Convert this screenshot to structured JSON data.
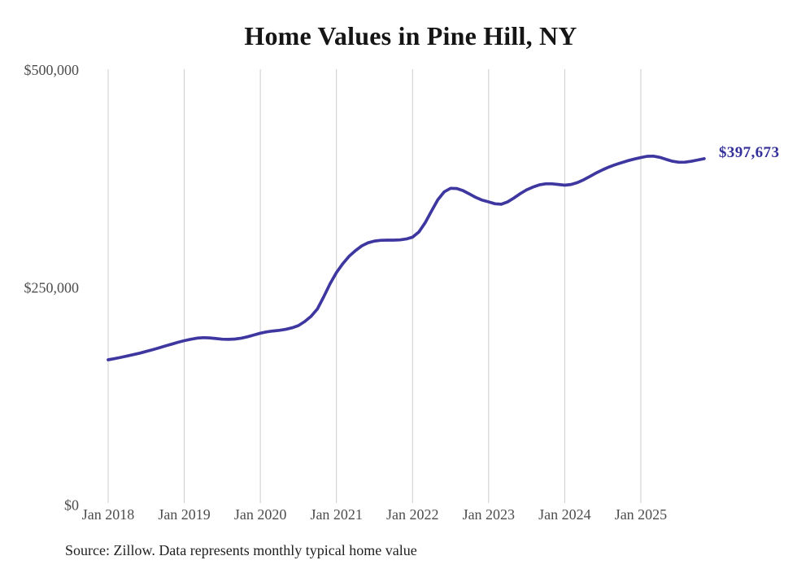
{
  "title": "Home Values in Pine Hill, NY",
  "end_label": "$397,673",
  "source_note": "Source: Zillow. Data represents monthly typical home value",
  "colors": {
    "background": "#ffffff",
    "line": "#3e37a0",
    "end_label_text": "#34309a",
    "gridline": "#cccccc",
    "axis_text": "#4d4d4d",
    "title_text": "#151515",
    "source_text": "#212121"
  },
  "chart_data": {
    "type": "line",
    "title": "Home Values in Pine Hill, NY",
    "ylabel": "",
    "xlabel": "",
    "ylim": [
      0,
      500000
    ],
    "grid": "vertical-only",
    "legend": "none",
    "x_frequency": "monthly",
    "x_start": "Jan 2018",
    "x_end": "Nov 2025",
    "y_ticks": [
      {
        "label": "$0",
        "value": 0
      },
      {
        "label": "$250,000",
        "value": 250000
      },
      {
        "label": "$500,000",
        "value": 500000
      }
    ],
    "x_ticks": [
      {
        "label": "Jan 2018",
        "month_index": 0
      },
      {
        "label": "Jan 2019",
        "month_index": 12
      },
      {
        "label": "Jan 2020",
        "month_index": 24
      },
      {
        "label": "Jan 2021",
        "month_index": 36
      },
      {
        "label": "Jan 2022",
        "month_index": 48
      },
      {
        "label": "Jan 2023",
        "month_index": 60
      },
      {
        "label": "Jan 2024",
        "month_index": 72
      },
      {
        "label": "Jan 2025",
        "month_index": 84
      }
    ],
    "series": [
      {
        "name": "Monthly typical home value",
        "end_value": 397673,
        "end_value_label": "$397,673",
        "monthly_values": [
          166500,
          167800,
          169300,
          170900,
          172500,
          174200,
          176100,
          178100,
          180200,
          182400,
          184500,
          186600,
          188500,
          190100,
          191400,
          192000,
          191700,
          190900,
          190200,
          190000,
          190400,
          191400,
          193000,
          195000,
          197100,
          198600,
          199600,
          200400,
          201500,
          203300,
          205800,
          210500,
          216500,
          225000,
          239000,
          254000,
          266800,
          277000,
          285500,
          292000,
          297500,
          301000,
          303000,
          303800,
          304000,
          304000,
          304300,
          305300,
          307500,
          313500,
          324000,
          337500,
          350500,
          359500,
          363600,
          363300,
          360800,
          357000,
          353000,
          350000,
          348000,
          345800,
          345300,
          348000,
          352500,
          357500,
          361800,
          365000,
          367500,
          368800,
          368800,
          368000,
          367200,
          368000,
          370200,
          373400,
          377400,
          381400,
          384900,
          388100,
          390800,
          393200,
          395400,
          397300,
          398900,
          400400,
          400600,
          399200,
          396800,
          394700,
          393500,
          393600,
          394700,
          396200,
          397673
        ]
      }
    ]
  }
}
